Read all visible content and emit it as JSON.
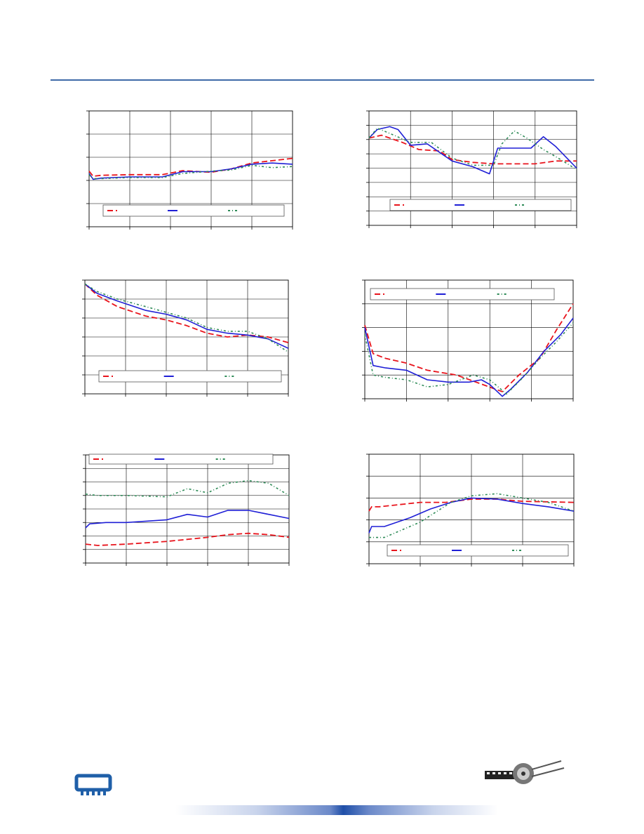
{
  "colors": {
    "series1": "#e8141c",
    "series2": "#1f1fd6",
    "series3": "#2e8b57",
    "grid": "#000000",
    "header_rule": "#3f6aa8",
    "logo_blue": "#1f5fa8"
  },
  "icons": [
    "memory-module-icon",
    "film-reel-logo"
  ],
  "chart_data": [
    {
      "type": "line",
      "legend": "bottom",
      "grid": true,
      "xlim": [
        0,
        5
      ],
      "ylim": [
        0,
        5
      ],
      "x_ticks": 5,
      "y_ticks": 5,
      "series": [
        {
          "x": [
            0,
            0.1,
            0.3,
            1,
            1.8,
            2.3,
            3,
            3.5,
            4,
            4.5,
            5
          ],
          "values": [
            2.4,
            2.18,
            2.22,
            2.25,
            2.25,
            2.42,
            2.35,
            2.5,
            2.75,
            2.85,
            2.95
          ]
        },
        {
          "x": [
            0,
            0.1,
            0.3,
            1,
            1.8,
            2.3,
            3,
            3.5,
            4,
            4.5,
            5
          ],
          "values": [
            2.3,
            2.05,
            2.1,
            2.15,
            2.15,
            2.38,
            2.38,
            2.5,
            2.7,
            2.75,
            2.7
          ]
        },
        {
          "x": [
            0,
            0.1,
            0.3,
            1,
            1.8,
            2.3,
            3,
            3.5,
            4,
            4.5,
            5
          ],
          "values": [
            2.25,
            2.08,
            2.08,
            2.12,
            2.12,
            2.3,
            2.4,
            2.45,
            2.65,
            2.55,
            2.6
          ]
        }
      ]
    },
    {
      "type": "line",
      "legend": "bottom",
      "grid": true,
      "xlim": [
        0,
        5
      ],
      "ylim": [
        0,
        8
      ],
      "x_ticks": 5,
      "y_ticks": 8,
      "series": [
        {
          "x": [
            0,
            0.3,
            0.8,
            1.2,
            1.7,
            2,
            2.5,
            3,
            3.5,
            4,
            4.5,
            5
          ],
          "values": [
            6.1,
            6.3,
            5.8,
            5.3,
            5.2,
            4.6,
            4.4,
            4.3,
            4.3,
            4.3,
            4.5,
            4.5
          ]
        },
        {
          "x": [
            0,
            0.2,
            0.5,
            0.7,
            1,
            1.4,
            2,
            2.5,
            2.9,
            3.1,
            3.5,
            3.9,
            4.2,
            4.5,
            5
          ],
          "values": [
            6.1,
            6.7,
            6.9,
            6.7,
            5.6,
            5.7,
            4.5,
            4.1,
            3.6,
            5.4,
            5.4,
            5.4,
            6.2,
            5.5,
            4
          ]
        },
        {
          "x": [
            0,
            0.2,
            0.6,
            1,
            1.5,
            2,
            2.5,
            3,
            3.2,
            3.5,
            3.8,
            4.2,
            4.5,
            5
          ],
          "values": [
            6.1,
            6.8,
            6.3,
            5.8,
            5.8,
            4.7,
            4.2,
            4.2,
            5.7,
            6.6,
            6.1,
            5.3,
            4.8,
            3.9
          ]
        }
      ]
    },
    {
      "type": "line",
      "legend": "bottom",
      "grid": true,
      "xlim": [
        0,
        5
      ],
      "ylim": [
        0,
        6
      ],
      "x_ticks": 5,
      "y_ticks": 6,
      "series": [
        {
          "x": [
            0,
            0.3,
            0.8,
            1.5,
            2,
            2.5,
            3,
            3.5,
            4,
            4.5,
            5
          ],
          "values": [
            5.8,
            5.2,
            4.6,
            4.1,
            3.9,
            3.6,
            3.2,
            3,
            3.1,
            3,
            2.7
          ]
        },
        {
          "x": [
            0,
            0.3,
            0.8,
            1.5,
            2,
            2.5,
            3,
            3.5,
            4,
            4.5,
            5
          ],
          "values": [
            5.8,
            5.3,
            4.9,
            4.4,
            4.2,
            3.9,
            3.4,
            3.2,
            3.1,
            2.9,
            2.4
          ]
        },
        {
          "x": [
            0,
            0.3,
            0.8,
            1.5,
            2,
            2.5,
            3,
            3.5,
            4,
            4.5,
            5
          ],
          "values": [
            5.8,
            5.4,
            5,
            4.6,
            4.3,
            4,
            3.5,
            3.3,
            3.3,
            2.9,
            2.2
          ]
        }
      ]
    },
    {
      "type": "line",
      "legend": "top",
      "grid": true,
      "xlim": [
        0,
        5
      ],
      "ylim": [
        0,
        5
      ],
      "x_ticks": 5,
      "y_ticks": 5,
      "series": [
        {
          "x": [
            0,
            0.2,
            0.5,
            1,
            1.5,
            2.2,
            3.3,
            3.7,
            4.2,
            4.6,
            5
          ],
          "values": [
            3.1,
            1.9,
            1.7,
            1.5,
            1.2,
            1.0,
            0.3,
            1.0,
            1.7,
            2.9,
            4.0
          ]
        },
        {
          "x": [
            0,
            0.2,
            0.5,
            1,
            1.5,
            2,
            2.5,
            2.8,
            3,
            3.3,
            3.5,
            3.9,
            4.3,
            4.7,
            5
          ],
          "values": [
            3.0,
            1.4,
            1.3,
            1.2,
            0.8,
            0.7,
            0.7,
            0.8,
            0.6,
            0.1,
            0.4,
            1.1,
            2.0,
            2.7,
            3.4
          ]
        },
        {
          "x": [
            0,
            0.2,
            0.5,
            1,
            1.5,
            2,
            2.6,
            3,
            3.4,
            3.8,
            4.2,
            4.6,
            5
          ],
          "values": [
            2.7,
            1.0,
            0.9,
            0.8,
            0.5,
            0.6,
            1.0,
            0.8,
            0.2,
            0.9,
            1.7,
            2.4,
            3.2
          ]
        }
      ]
    },
    {
      "type": "line",
      "legend": "top",
      "grid": true,
      "xlim": [
        0,
        5
      ],
      "ylim": [
        0,
        8
      ],
      "x_ticks": 5,
      "y_ticks": 8,
      "series": [
        {
          "x": [
            0,
            0.3,
            1,
            2,
            3,
            3.5,
            4,
            4.5,
            5
          ],
          "values": [
            1.4,
            1.3,
            1.4,
            1.6,
            1.9,
            2.1,
            2.2,
            2.1,
            1.9
          ]
        },
        {
          "x": [
            0,
            0.1,
            0.5,
            1,
            2,
            2.5,
            3,
            3.5,
            4,
            4.5,
            5
          ],
          "values": [
            2.6,
            2.9,
            3.0,
            3.0,
            3.2,
            3.6,
            3.4,
            3.9,
            3.9,
            3.6,
            3.3
          ]
        },
        {
          "x": [
            0,
            0.3,
            1,
            2,
            2.5,
            3,
            3.5,
            4,
            4.5,
            5
          ],
          "values": [
            5.1,
            5.0,
            5.0,
            4.9,
            5.5,
            5.2,
            5.9,
            6.1,
            5.9,
            5.0
          ]
        }
      ]
    },
    {
      "type": "line",
      "legend": "bottom",
      "grid": true,
      "xlim": [
        0,
        4
      ],
      "ylim": [
        0,
        5
      ],
      "x_ticks": 4,
      "y_ticks": 5,
      "series": [
        {
          "x": [
            0,
            0.05,
            0.2,
            1,
            1.5,
            2,
            2.5,
            3,
            4
          ],
          "values": [
            2.4,
            2.6,
            2.6,
            2.8,
            2.8,
            2.95,
            2.95,
            2.85,
            2.8
          ]
        },
        {
          "x": [
            0,
            0.05,
            0.3,
            0.8,
            1.2,
            1.6,
            2,
            2.5,
            3,
            3.5,
            4
          ],
          "values": [
            1.4,
            1.7,
            1.7,
            2.1,
            2.5,
            2.8,
            3.0,
            2.95,
            2.75,
            2.6,
            2.4
          ]
        },
        {
          "x": [
            0,
            0.3,
            1,
            1.6,
            2,
            2.5,
            3,
            3.5,
            4
          ],
          "values": [
            1.2,
            1.2,
            1.9,
            2.8,
            3.1,
            3.2,
            3.0,
            2.8,
            2.4
          ]
        }
      ]
    }
  ]
}
